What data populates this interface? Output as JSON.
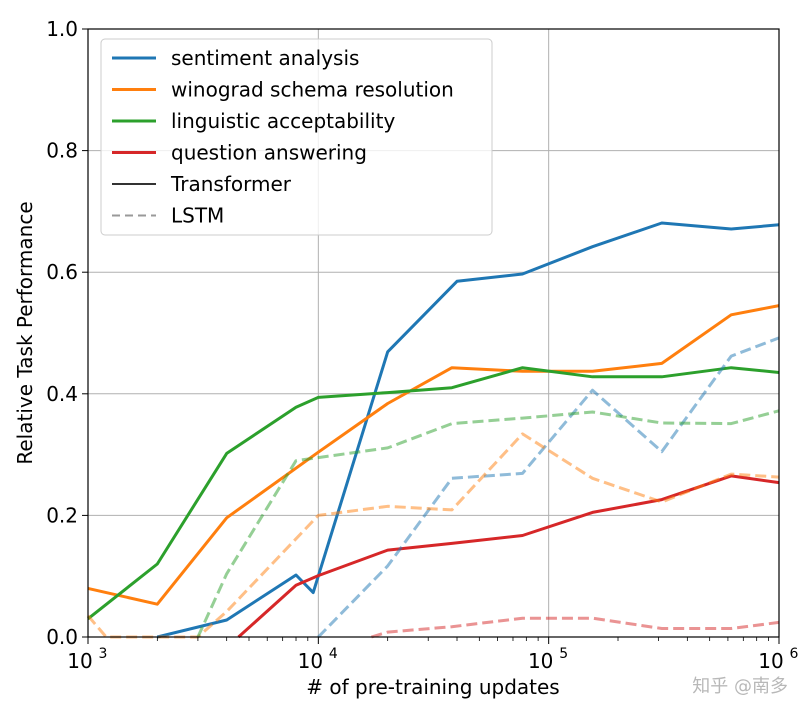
{
  "chart_data": {
    "type": "line",
    "xlabel": "# of pre-training updates",
    "ylabel": "Relative Task Performance",
    "xscale": "log",
    "xlim": [
      1000,
      1000000
    ],
    "ylim": [
      0.0,
      1.0
    ],
    "grid": true,
    "legend_position": "top-left",
    "x_ticks": [
      {
        "value": 1000,
        "base": "10",
        "exp": "3"
      },
      {
        "value": 10000,
        "base": "10",
        "exp": "4"
      },
      {
        "value": 100000,
        "base": "10",
        "exp": "5"
      },
      {
        "value": 1000000,
        "base": "10",
        "exp": "6"
      }
    ],
    "y_ticks": [
      {
        "value": 0.0,
        "label": "0.0"
      },
      {
        "value": 0.2,
        "label": "0.2"
      },
      {
        "value": 0.4,
        "label": "0.4"
      },
      {
        "value": 0.6,
        "label": "0.6"
      },
      {
        "value": 0.8,
        "label": "0.8"
      },
      {
        "value": 1.0,
        "label": "1.0"
      }
    ],
    "legend": [
      {
        "label": "sentiment analysis",
        "color": "#1f77b4",
        "style": "solid"
      },
      {
        "label": "winograd schema resolution",
        "color": "#ff7f0e",
        "style": "solid"
      },
      {
        "label": "linguistic acceptability",
        "color": "#2ca02c",
        "style": "solid"
      },
      {
        "label": "question answering",
        "color": "#d62728",
        "style": "solid"
      },
      {
        "label": "Transformer",
        "color": "#333333",
        "style": "solid"
      },
      {
        "label": "LSTM",
        "color": "#999999",
        "style": "dashed"
      }
    ],
    "series": [
      {
        "task": "sentiment analysis",
        "model": "Transformer",
        "color": "#1f77b4",
        "dashed": false,
        "x": [
          2000,
          4000,
          8000,
          9500,
          20000,
          40000,
          77000,
          155000,
          310000,
          620000,
          1000000
        ],
        "y": [
          0.0,
          0.028,
          0.102,
          0.073,
          0.469,
          0.585,
          0.597,
          0.642,
          0.681,
          0.671,
          0.678
        ]
      },
      {
        "task": "winograd schema resolution",
        "model": "Transformer",
        "color": "#ff7f0e",
        "dashed": false,
        "x": [
          1000,
          2000,
          4000,
          10000,
          20000,
          38000,
          77000,
          155000,
          310000,
          620000,
          1000000
        ],
        "y": [
          0.08,
          0.054,
          0.196,
          0.304,
          0.384,
          0.443,
          0.437,
          0.437,
          0.45,
          0.53,
          0.545
        ]
      },
      {
        "task": "linguistic acceptability",
        "model": "Transformer",
        "color": "#2ca02c",
        "dashed": false,
        "x": [
          1000,
          2000,
          4000,
          8000,
          10000,
          20000,
          38000,
          77000,
          155000,
          310000,
          620000,
          1000000
        ],
        "y": [
          0.03,
          0.12,
          0.302,
          0.378,
          0.394,
          0.402,
          0.41,
          0.443,
          0.428,
          0.428,
          0.443,
          0.435
        ]
      },
      {
        "task": "question answering",
        "model": "Transformer",
        "color": "#d62728",
        "dashed": false,
        "x": [
          4500,
          8000,
          10000,
          20000,
          38000,
          77000,
          155000,
          310000,
          620000,
          1000000
        ],
        "y": [
          0.0,
          0.085,
          0.101,
          0.143,
          0.154,
          0.167,
          0.205,
          0.226,
          0.265,
          0.254
        ]
      },
      {
        "task": "sentiment analysis",
        "model": "LSTM",
        "color": "#1f77b4",
        "dashed": true,
        "x": [
          10000,
          20000,
          38000,
          77000,
          155000,
          310000,
          620000,
          1000000
        ],
        "y": [
          0.0,
          0.117,
          0.261,
          0.269,
          0.406,
          0.305,
          0.462,
          0.492
        ]
      },
      {
        "task": "winograd schema resolution",
        "model": "LSTM",
        "color": "#ff7f0e",
        "dashed": true,
        "x": [
          1000,
          1200,
          3000,
          4000,
          10000,
          20000,
          38000,
          77000,
          155000,
          310000,
          620000,
          1000000
        ],
        "y": [
          0.035,
          0.0,
          0.0,
          0.042,
          0.2,
          0.215,
          0.209,
          0.334,
          0.261,
          0.222,
          0.268,
          0.263
        ]
      },
      {
        "task": "linguistic acceptability",
        "model": "LSTM",
        "color": "#2ca02c",
        "dashed": true,
        "x": [
          3000,
          4000,
          8000,
          10000,
          20000,
          38000,
          77000,
          155000,
          310000,
          620000,
          1000000
        ],
        "y": [
          0.0,
          0.104,
          0.29,
          0.295,
          0.311,
          0.351,
          0.36,
          0.37,
          0.352,
          0.351,
          0.372
        ]
      },
      {
        "task": "question answering",
        "model": "LSTM",
        "color": "#d62728",
        "dashed": true,
        "x": [
          17000,
          20000,
          38000,
          77000,
          155000,
          310000,
          620000,
          1000000
        ],
        "y": [
          0.0,
          0.008,
          0.017,
          0.031,
          0.031,
          0.014,
          0.014,
          0.024
        ]
      }
    ]
  },
  "watermark": "知乎 @南多"
}
